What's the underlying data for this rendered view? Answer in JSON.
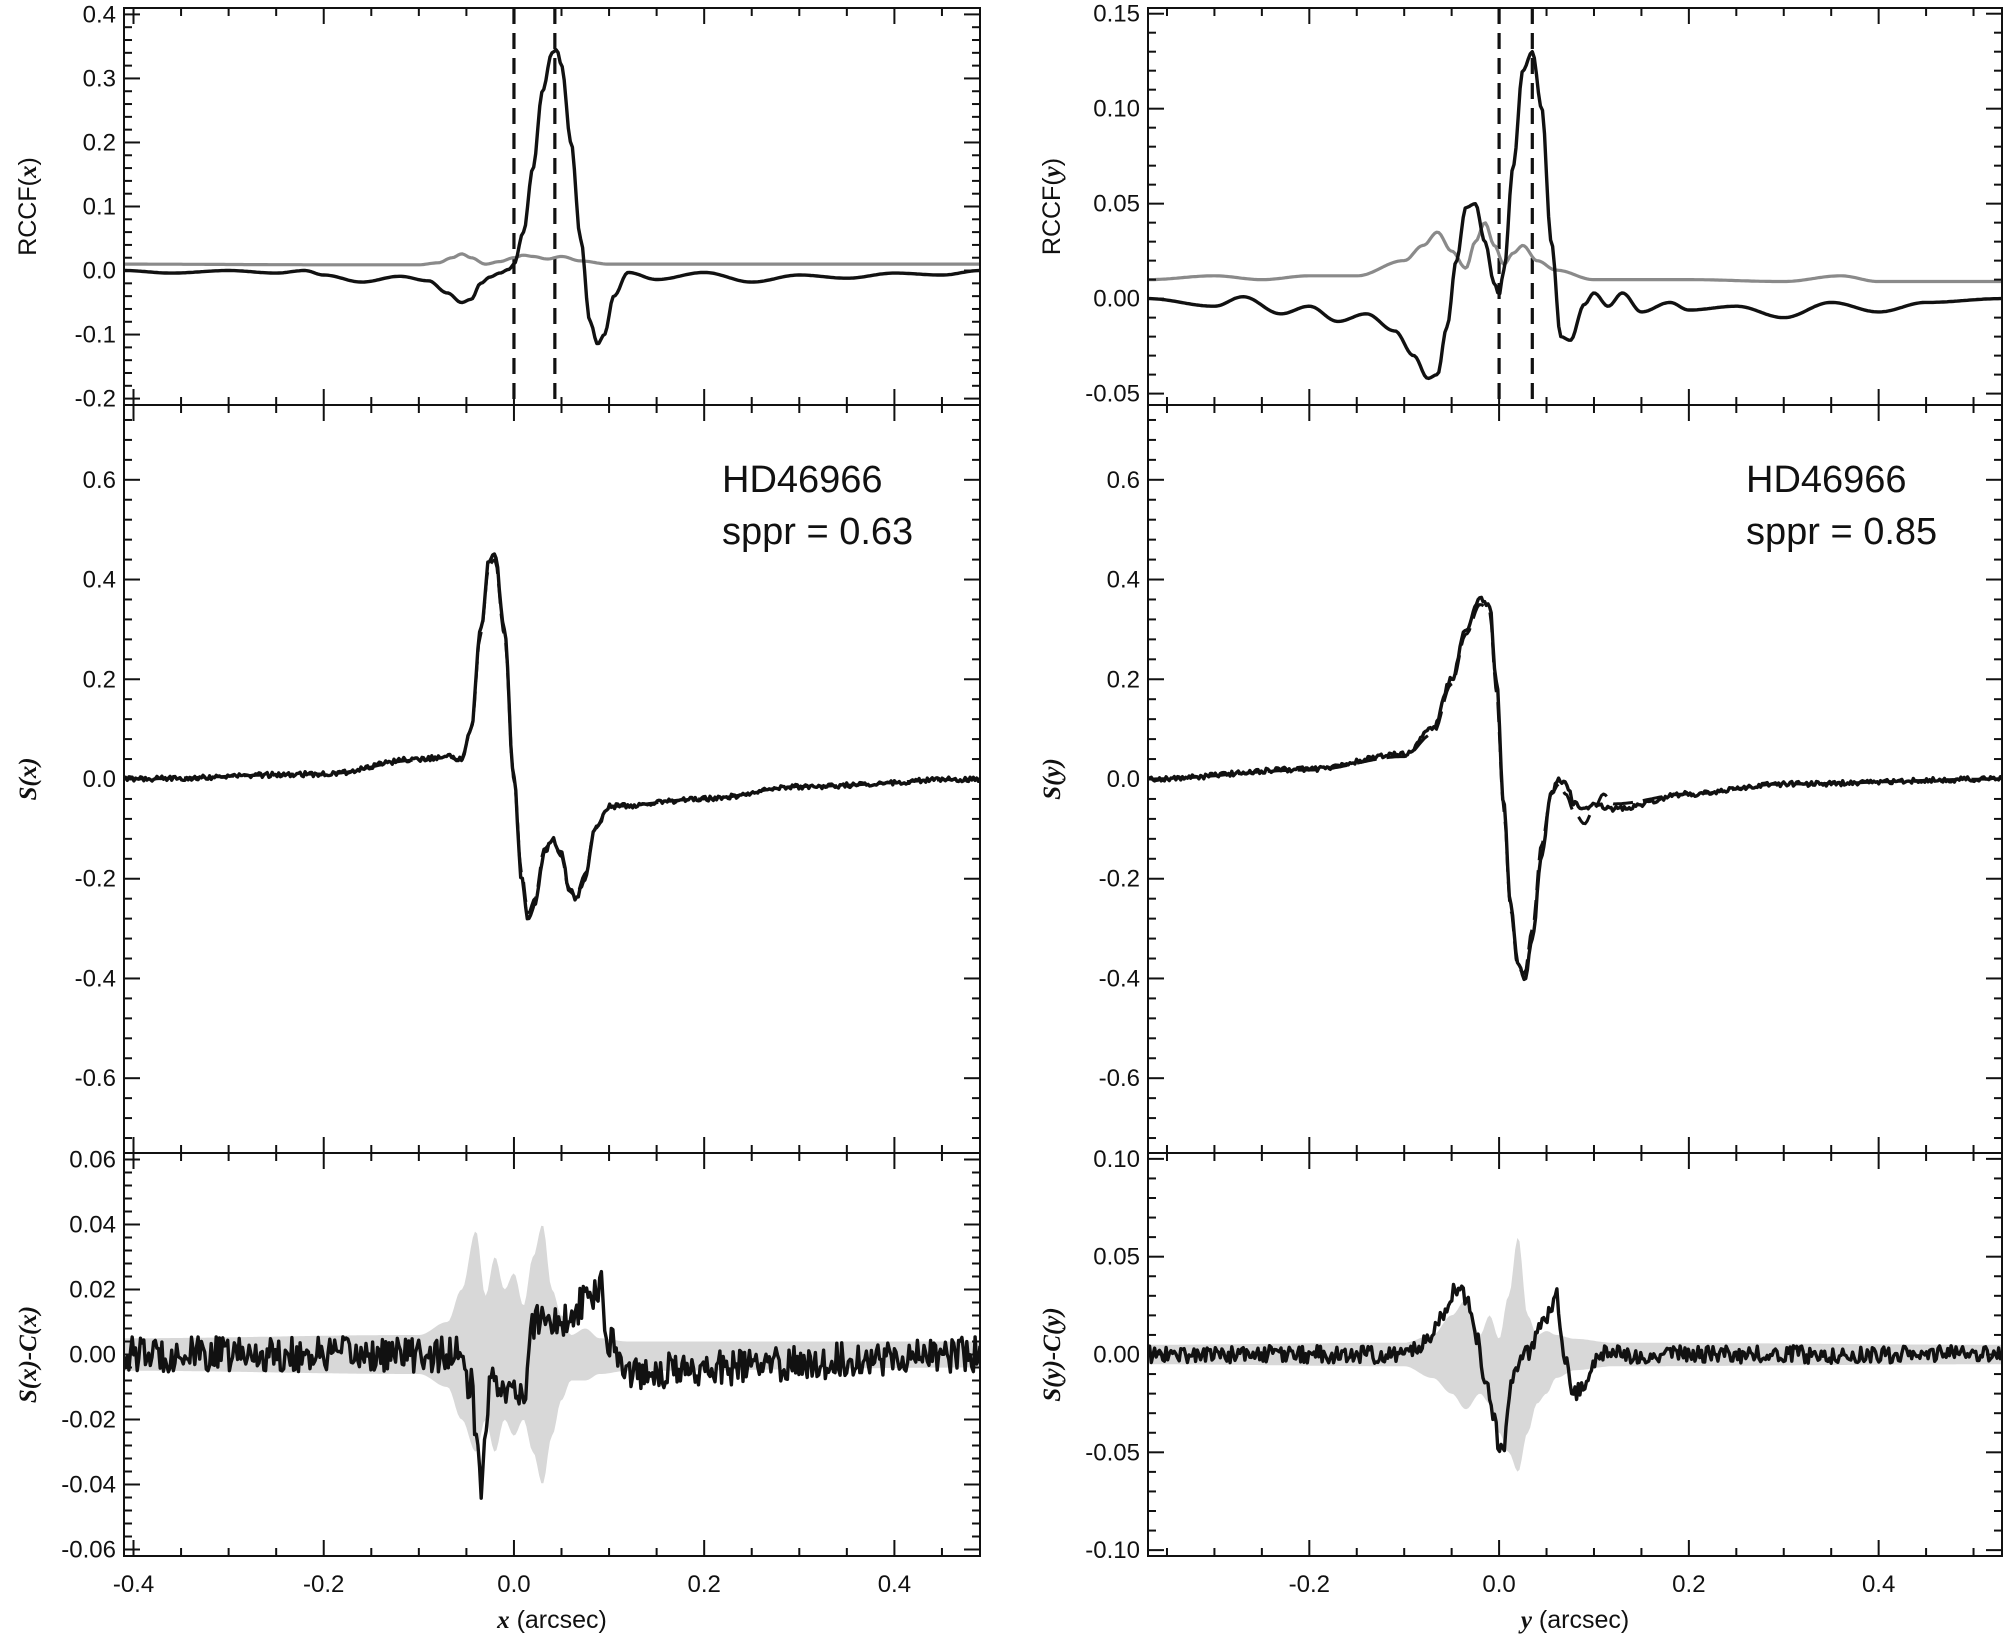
{
  "chart_data": [
    {
      "type": "line",
      "panel": "left-top",
      "ylabel_prefix": "RCCF(",
      "ylabel_var": "x",
      "ylabel_suffix": ")",
      "xlim": [
        -0.41,
        0.49
      ],
      "ylim": [
        -0.21,
        0.41
      ],
      "yticks": [
        -0.2,
        -0.1,
        0.0,
        0.1,
        0.2,
        0.3,
        0.4
      ],
      "ytick_labels": [
        "-0.2",
        "-0.1",
        "0.0",
        "0.1",
        "0.2",
        "0.3",
        "0.4"
      ],
      "vlines": [
        0.0,
        0.043
      ],
      "series": [
        {
          "color": "#111111",
          "x": [
            -0.41,
            -0.36,
            -0.3,
            -0.25,
            -0.22,
            -0.2,
            -0.16,
            -0.12,
            -0.09,
            -0.07,
            -0.055,
            -0.045,
            -0.035,
            -0.025,
            -0.015,
            -0.005,
            0.0,
            0.01,
            0.02,
            0.03,
            0.04,
            0.045,
            0.05,
            0.06,
            0.07,
            0.08,
            0.088,
            0.095,
            0.105,
            0.12,
            0.15,
            0.2,
            0.25,
            0.3,
            0.35,
            0.4,
            0.45,
            0.49
          ],
          "y": [
            0.0,
            -0.004,
            0.0,
            -0.004,
            0.0,
            -0.007,
            -0.018,
            -0.009,
            -0.016,
            -0.035,
            -0.05,
            -0.045,
            -0.02,
            -0.01,
            -0.004,
            0.002,
            0.01,
            0.06,
            0.16,
            0.28,
            0.34,
            0.345,
            0.32,
            0.2,
            0.05,
            -0.08,
            -0.115,
            -0.1,
            -0.04,
            -0.003,
            -0.014,
            -0.003,
            -0.018,
            -0.007,
            -0.012,
            -0.004,
            -0.007,
            0.0
          ]
        },
        {
          "color": "#8a8a8a",
          "x": [
            -0.41,
            -0.2,
            -0.1,
            -0.08,
            -0.065,
            -0.055,
            -0.045,
            -0.03,
            -0.015,
            0.0,
            0.01,
            0.02,
            0.035,
            0.05,
            0.07,
            0.1,
            0.2,
            0.49
          ],
          "y": [
            0.01,
            0.009,
            0.009,
            0.012,
            0.02,
            0.026,
            0.02,
            0.01,
            0.014,
            0.02,
            0.024,
            0.022,
            0.018,
            0.022,
            0.015,
            0.01,
            0.01,
            0.01
          ]
        }
      ]
    },
    {
      "type": "line",
      "panel": "left-middle",
      "ylabel_var": "S",
      "ylabel_arg": "(x)",
      "xlim": [
        -0.41,
        0.49
      ],
      "ylim": [
        -0.75,
        0.75
      ],
      "yticks": [
        -0.6,
        -0.4,
        -0.2,
        0.0,
        0.2,
        0.4,
        0.6
      ],
      "ytick_labels": [
        "-0.6",
        "-0.4",
        "-0.2",
        "0.0",
        "0.2",
        "0.4",
        "0.6"
      ],
      "annotation": [
        "HD46966",
        "sppr = 0.63"
      ],
      "series": [
        {
          "style": "solid",
          "noise": 0.005,
          "x": [
            -0.41,
            -0.2,
            -0.1,
            -0.07,
            -0.055,
            -0.045,
            -0.035,
            -0.026,
            -0.02,
            -0.01,
            0.0,
            0.008,
            0.015,
            0.022,
            0.032,
            0.04,
            0.05,
            0.058,
            0.065,
            0.075,
            0.085,
            0.1,
            0.2,
            0.3,
            0.49
          ],
          "y": [
            0.0,
            0.01,
            0.04,
            0.045,
            0.04,
            0.1,
            0.3,
            0.44,
            0.45,
            0.3,
            0.0,
            -0.2,
            -0.28,
            -0.25,
            -0.15,
            -0.12,
            -0.15,
            -0.22,
            -0.24,
            -0.2,
            -0.1,
            -0.055,
            -0.04,
            -0.015,
            0.0
          ]
        },
        {
          "style": "dashed",
          "noise": 0,
          "x": [
            -0.41,
            -0.2,
            -0.1,
            -0.07,
            -0.055,
            -0.045,
            -0.035,
            -0.026,
            -0.02,
            -0.01,
            0.0,
            0.008,
            0.015,
            0.022,
            0.032,
            0.04,
            0.05,
            0.058,
            0.065,
            0.075,
            0.085,
            0.1,
            0.2,
            0.3,
            0.49
          ],
          "y": [
            0.0,
            0.01,
            0.038,
            0.043,
            0.038,
            0.1,
            0.29,
            0.43,
            0.44,
            0.29,
            0.0,
            -0.19,
            -0.27,
            -0.24,
            -0.14,
            -0.125,
            -0.155,
            -0.225,
            -0.235,
            -0.19,
            -0.1,
            -0.055,
            -0.04,
            -0.015,
            0.0
          ]
        }
      ]
    },
    {
      "type": "line",
      "panel": "left-bottom",
      "ylabel_var": "S",
      "ylabel_arg": "(x)",
      "ylabel_mid": "-",
      "ylabel_var2": "C",
      "ylabel_arg2": "(x)",
      "xlabel_var": "x",
      "xlabel_text": " (arcsec)",
      "xlim": [
        -0.41,
        0.49
      ],
      "ylim": [
        -0.062,
        0.062
      ],
      "yticks": [
        -0.06,
        -0.04,
        -0.02,
        0.0,
        0.02,
        0.04,
        0.06
      ],
      "ytick_labels": [
        "-0.06",
        "-0.04",
        "-0.02",
        "0.00",
        "0.02",
        "0.04",
        "0.06"
      ],
      "xticks": [
        -0.4,
        -0.2,
        0.0,
        0.2,
        0.4
      ],
      "xtick_labels": [
        "-0.4",
        "-0.2",
        "0.0",
        "0.2",
        "0.4"
      ],
      "band": {
        "color": "#d8d8d8",
        "x": [
          -0.41,
          -0.1,
          -0.07,
          -0.055,
          -0.04,
          -0.03,
          -0.02,
          -0.01,
          0.0,
          0.01,
          0.02,
          0.03,
          0.04,
          0.05,
          0.06,
          0.075,
          0.09,
          0.12,
          0.49
        ],
        "upper": [
          0.005,
          0.006,
          0.01,
          0.02,
          0.038,
          0.018,
          0.03,
          0.02,
          0.025,
          0.015,
          0.03,
          0.04,
          0.02,
          0.012,
          0.006,
          0.008,
          0.005,
          0.004,
          0.004
        ],
        "lower": [
          -0.005,
          -0.006,
          -0.01,
          -0.02,
          -0.03,
          -0.02,
          -0.03,
          -0.02,
          -0.025,
          -0.02,
          -0.03,
          -0.04,
          -0.025,
          -0.014,
          -0.008,
          -0.008,
          -0.006,
          -0.005,
          -0.004
        ]
      },
      "series": [
        {
          "style": "solid",
          "noise": 0.0055,
          "x": [
            -0.41,
            -0.1,
            -0.06,
            -0.045,
            -0.04,
            -0.035,
            -0.025,
            -0.015,
            0.0,
            0.01,
            0.02,
            0.03,
            0.045,
            0.06,
            0.07,
            0.08,
            0.09,
            0.1,
            0.12,
            0.49
          ],
          "y": [
            0.0,
            0.0,
            0.0,
            -0.01,
            -0.025,
            -0.04,
            -0.01,
            -0.008,
            -0.012,
            -0.015,
            0.01,
            0.012,
            0.01,
            0.01,
            0.015,
            0.018,
            0.022,
            0.005,
            -0.005,
            0.0
          ]
        }
      ]
    },
    {
      "type": "line",
      "panel": "right-top",
      "ylabel_prefix": "RCCF(",
      "ylabel_var": "y",
      "ylabel_suffix": ")",
      "xlim": [
        -0.37,
        0.53
      ],
      "ylim": [
        -0.056,
        0.153
      ],
      "yticks": [
        -0.05,
        0.0,
        0.05,
        0.1,
        0.15
      ],
      "ytick_labels": [
        "-0.05",
        "0.00",
        "0.05",
        "0.10",
        "0.15"
      ],
      "vlines": [
        0.0,
        0.035
      ],
      "series": [
        {
          "color": "#111111",
          "x": [
            -0.37,
            -0.3,
            -0.27,
            -0.23,
            -0.2,
            -0.17,
            -0.14,
            -0.11,
            -0.09,
            -0.075,
            -0.065,
            -0.055,
            -0.045,
            -0.035,
            -0.025,
            -0.015,
            -0.005,
            0.0,
            0.005,
            0.015,
            0.025,
            0.035,
            0.045,
            0.055,
            0.065,
            0.075,
            0.09,
            0.1,
            0.115,
            0.13,
            0.15,
            0.18,
            0.2,
            0.25,
            0.3,
            0.35,
            0.4,
            0.45,
            0.53
          ],
          "y": [
            0.0,
            -0.004,
            0.001,
            -0.008,
            -0.004,
            -0.012,
            -0.008,
            -0.017,
            -0.03,
            -0.042,
            -0.04,
            -0.015,
            0.02,
            0.048,
            0.05,
            0.03,
            0.008,
            0.002,
            0.015,
            0.07,
            0.12,
            0.13,
            0.1,
            0.03,
            -0.02,
            -0.022,
            -0.003,
            0.003,
            -0.004,
            0.003,
            -0.007,
            -0.002,
            -0.006,
            -0.004,
            -0.01,
            -0.002,
            -0.007,
            -0.002,
            0.0
          ]
        },
        {
          "color": "#8a8a8a",
          "x": [
            -0.37,
            -0.3,
            -0.25,
            -0.2,
            -0.15,
            -0.1,
            -0.08,
            -0.065,
            -0.05,
            -0.035,
            -0.025,
            -0.015,
            -0.005,
            0.005,
            0.015,
            0.025,
            0.04,
            0.06,
            0.1,
            0.2,
            0.3,
            0.36,
            0.4,
            0.53
          ],
          "y": [
            0.01,
            0.012,
            0.01,
            0.012,
            0.012,
            0.02,
            0.028,
            0.035,
            0.025,
            0.016,
            0.03,
            0.04,
            0.028,
            0.018,
            0.024,
            0.028,
            0.02,
            0.015,
            0.01,
            0.01,
            0.009,
            0.012,
            0.009,
            0.009
          ]
        }
      ]
    },
    {
      "type": "line",
      "panel": "right-middle",
      "ylabel_var": "S",
      "ylabel_arg": "(y)",
      "xlim": [
        -0.37,
        0.53
      ],
      "ylim": [
        -0.75,
        0.75
      ],
      "yticks": [
        -0.6,
        -0.4,
        -0.2,
        0.0,
        0.2,
        0.4,
        0.6
      ],
      "ytick_labels": [
        "-0.6",
        "-0.4",
        "-0.2",
        "0.0",
        "0.2",
        "0.4",
        "0.6"
      ],
      "annotation": [
        "HD46966",
        "sppr = 0.85"
      ],
      "series": [
        {
          "style": "solid",
          "noise": 0.005,
          "x": [
            -0.37,
            -0.2,
            -0.1,
            -0.07,
            -0.05,
            -0.035,
            -0.02,
            -0.01,
            -0.003,
            0.005,
            0.012,
            0.02,
            0.027,
            0.035,
            0.045,
            0.055,
            0.063,
            0.07,
            0.08,
            0.09,
            0.1,
            0.12,
            0.2,
            0.3,
            0.53
          ],
          "y": [
            0.0,
            0.02,
            0.05,
            0.1,
            0.2,
            0.3,
            0.36,
            0.35,
            0.2,
            -0.05,
            -0.25,
            -0.37,
            -0.4,
            -0.32,
            -0.15,
            -0.03,
            0.0,
            -0.01,
            -0.05,
            -0.06,
            -0.05,
            -0.06,
            -0.03,
            -0.01,
            0.0
          ]
        },
        {
          "style": "dashed",
          "noise": 0,
          "x": [
            -0.37,
            -0.2,
            -0.1,
            -0.07,
            -0.05,
            -0.035,
            -0.02,
            -0.01,
            -0.003,
            0.005,
            0.012,
            0.02,
            0.027,
            0.035,
            0.045,
            0.055,
            0.063,
            0.07,
            0.08,
            0.09,
            0.1,
            0.11,
            0.12,
            0.2,
            0.3,
            0.53
          ],
          "y": [
            0.0,
            0.018,
            0.045,
            0.09,
            0.19,
            0.29,
            0.35,
            0.34,
            0.18,
            -0.06,
            -0.26,
            -0.38,
            -0.39,
            -0.3,
            -0.13,
            -0.03,
            -0.01,
            -0.03,
            -0.07,
            -0.09,
            -0.06,
            -0.03,
            -0.05,
            -0.03,
            -0.01,
            0.0
          ]
        }
      ]
    },
    {
      "type": "line",
      "panel": "right-bottom",
      "ylabel_var": "S",
      "ylabel_arg": "(y)",
      "ylabel_mid": "-",
      "ylabel_var2": "C",
      "ylabel_arg2": "(y)",
      "xlabel_var": "y",
      "xlabel_text": " (arcsec)",
      "xlim": [
        -0.37,
        0.53
      ],
      "ylim": [
        -0.103,
        0.103
      ],
      "yticks": [
        -0.1,
        -0.05,
        0.0,
        0.05,
        0.1
      ],
      "ytick_labels": [
        "-0.10",
        "-0.05",
        "0.00",
        "0.05",
        "0.10"
      ],
      "xticks": [
        -0.2,
        0.0,
        0.2,
        0.4
      ],
      "xtick_labels": [
        "-0.2",
        "0.0",
        "0.2",
        "0.4"
      ],
      "band": {
        "color": "#d8d8d8",
        "x": [
          -0.37,
          -0.1,
          -0.07,
          -0.05,
          -0.035,
          -0.02,
          -0.01,
          0.0,
          0.01,
          0.02,
          0.03,
          0.04,
          0.05,
          0.06,
          0.08,
          0.12,
          0.53
        ],
        "upper": [
          0.005,
          0.006,
          0.01,
          0.02,
          0.028,
          0.01,
          0.02,
          0.008,
          0.03,
          0.06,
          0.02,
          0.01,
          0.012,
          0.01,
          0.008,
          0.006,
          0.005
        ],
        "lower": [
          -0.005,
          -0.006,
          -0.012,
          -0.02,
          -0.028,
          -0.02,
          -0.025,
          -0.04,
          -0.05,
          -0.06,
          -0.04,
          -0.025,
          -0.02,
          -0.012,
          -0.008,
          -0.006,
          -0.005
        ]
      },
      "series": [
        {
          "style": "solid",
          "noise": 0.0045,
          "x": [
            -0.37,
            -0.1,
            -0.08,
            -0.06,
            -0.045,
            -0.035,
            -0.025,
            -0.015,
            -0.005,
            0.0,
            0.005,
            0.015,
            0.03,
            0.05,
            0.06,
            0.07,
            0.08,
            0.09,
            0.1,
            0.11,
            0.13,
            0.53
          ],
          "y": [
            0.0,
            0.0,
            0.005,
            0.02,
            0.035,
            0.03,
            0.01,
            -0.01,
            -0.03,
            -0.05,
            -0.045,
            -0.01,
            0.0,
            0.02,
            0.03,
            -0.005,
            -0.02,
            -0.015,
            -0.005,
            0.0,
            0.0,
            0.0
          ]
        }
      ]
    }
  ]
}
